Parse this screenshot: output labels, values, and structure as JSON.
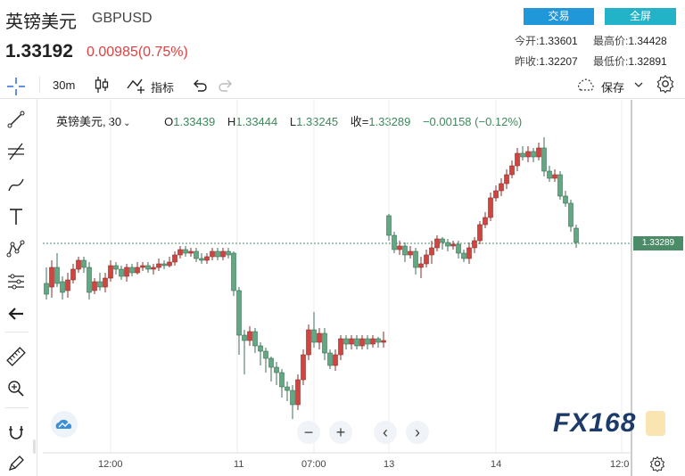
{
  "header": {
    "name": "英镑美元",
    "code": "GBPUSD",
    "price": "1.33192",
    "change": "0.00985(0.75%)",
    "trade_label": "交易",
    "fullscreen_label": "全屏",
    "stats": {
      "open_label": "今开:",
      "open": "1.33601",
      "high_label": "最高价:",
      "high": "1.34428",
      "prev_label": "昨收:",
      "prev": "1.32207",
      "low_label": "最低价:",
      "low": "1.32891"
    }
  },
  "toolbar": {
    "interval": "30m",
    "indicators_label": "指标",
    "save_label": "保存"
  },
  "legend": {
    "symbol": "英镑美元,",
    "interval": "30",
    "o_label": "O",
    "o": "1.33439",
    "h_label": "H",
    "h": "1.33444",
    "l_label": "L",
    "l": "1.33245",
    "c_label": "收=",
    "c": "1.33289",
    "change": "−0.00158 (−0.12%)"
  },
  "price_tag": "1.33289",
  "x_axis": [
    "12:00",
    "11",
    "07:00",
    "13",
    "14",
    "12:0"
  ],
  "watermark": "FX168",
  "colors": {
    "up": "#d0453f",
    "down": "#62a883",
    "accent": "#1f97d9",
    "tag": "#4c8b68"
  },
  "icons": [
    "crosshair-icon",
    "trend-line-icon",
    "fib-icon",
    "brush-icon",
    "text-icon",
    "pattern-icon",
    "measure-icon",
    "back-arrow-icon",
    "ruler-icon",
    "zoom-icon",
    "magnet-icon",
    "lock-icon",
    "pencil-icon",
    "camera-cloud-icon",
    "gear-icon"
  ]
}
